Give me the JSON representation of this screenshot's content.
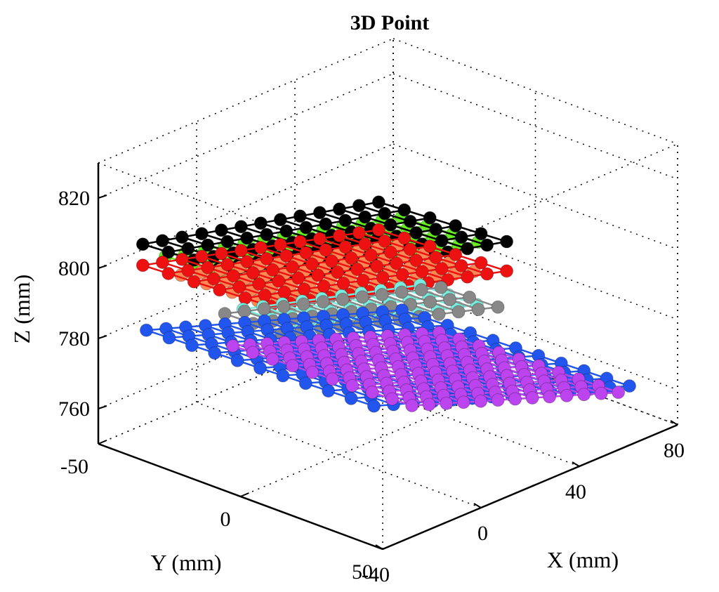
{
  "chart_data": {
    "type": "scatter3d",
    "title": "3D Point",
    "xlabel": "X (mm)",
    "ylabel": "Y (mm)",
    "zlabel": "Z (mm)",
    "xlim": [
      -40,
      80
    ],
    "ylim": [
      -50,
      50
    ],
    "zlim": [
      750,
      830
    ],
    "x_ticks": [
      -40,
      0,
      40,
      80
    ],
    "y_ticks": [
      -50,
      0,
      50
    ],
    "z_ticks": [
      760,
      780,
      800,
      820
    ],
    "grid": true,
    "marker": "sphere",
    "series": [
      {
        "color": "#66ee22",
        "x": {
          "start": -30,
          "step": 8,
          "count": 13
        },
        "y": {
          "start": -35,
          "step": 9,
          "count": 4
        },
        "z0": 805,
        "zx": -0.18,
        "zy": 0.04
      },
      {
        "color": "#000000",
        "x": {
          "start": -30,
          "step": 8,
          "count": 13
        },
        "y": {
          "start": -43,
          "step": 9,
          "count": 6
        },
        "z0": 806,
        "zx": -0.17,
        "zy": 0.05
      },
      {
        "color": "#ff8855",
        "x": {
          "start": -26,
          "step": 8,
          "count": 12
        },
        "y": {
          "start": -33,
          "step": 9,
          "count": 4
        },
        "z0": 799,
        "zx": -0.2,
        "zy": 0.03
      },
      {
        "color": "#ee1111",
        "x": {
          "start": -30,
          "step": 8,
          "count": 13
        },
        "y": {
          "start": -43,
          "step": 9,
          "count": 6
        },
        "z0": 800,
        "zx": -0.19,
        "zy": 0.04
      },
      {
        "color": "#77eedd",
        "x": {
          "start": -10,
          "step": 8,
          "count": 10
        },
        "y": {
          "start": -25,
          "step": 10,
          "count": 3
        },
        "z0": 787,
        "zx": -0.2,
        "zy": 0.02
      },
      {
        "color": "#888888",
        "x": {
          "start": -14,
          "step": 8,
          "count": 12
        },
        "y": {
          "start": -28,
          "step": 10,
          "count": 3
        },
        "z0": 786,
        "zx": -0.21,
        "zy": 0.02
      },
      {
        "color": "#2255ee",
        "x": {
          "start": -32,
          "step": 8,
          "count": 14
        },
        "y": {
          "start": -40,
          "step": 8,
          "count": 11
        },
        "z0": 783,
        "zx": -0.24,
        "zy": 0.03
      },
      {
        "color": "#bb44ee",
        "x": {
          "start": -20,
          "step": 7,
          "count": 13
        },
        "y": {
          "start": -20,
          "step": 7,
          "count": 10
        },
        "z0": 781,
        "zx": -0.25,
        "zy": 0.03
      }
    ]
  }
}
